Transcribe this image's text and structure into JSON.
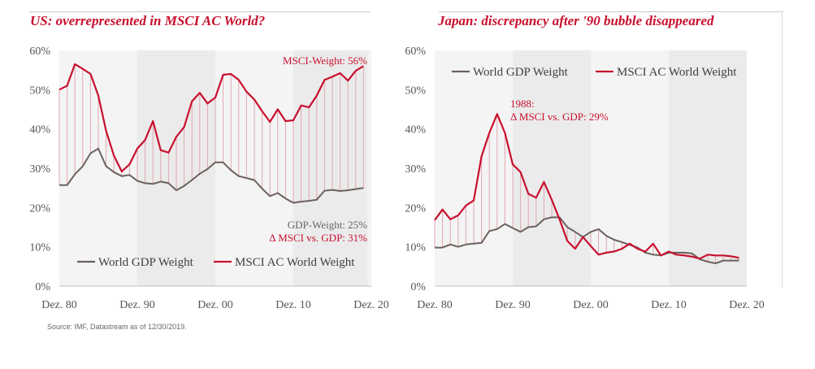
{
  "colors": {
    "msci": "#c8102e",
    "gdp": "#6b625d",
    "band": "#ebebeb",
    "plot_bg": "#f4f4f4",
    "annotation_text": "#c8102e",
    "annotation_grey": "#666666"
  },
  "source": "Source: IMF, Datastream as of 12/30/2019.",
  "chart_data": [
    {
      "type": "line",
      "title": "US: overrepresented in MSCI AC World?",
      "xlabel": "",
      "ylabel": "",
      "xlim": [
        1980,
        2020
      ],
      "ylim": [
        0,
        60
      ],
      "y_ticks": [
        "0%",
        "10%",
        "20%",
        "30%",
        "40%",
        "50%",
        "60%"
      ],
      "x_ticks": [
        {
          "x": 1980,
          "label": "Dez. 80"
        },
        {
          "x": 1990,
          "label": "Dez. 90"
        },
        {
          "x": 2000,
          "label": "Dez. 00"
        },
        {
          "x": 2010,
          "label": "Dez. 10"
        },
        {
          "x": 2020,
          "label": "Dez. 20"
        }
      ],
      "shaded_bands": [
        [
          1990,
          2000
        ],
        [
          2010,
          2019.5
        ]
      ],
      "legend": {
        "placement": "bottom-left",
        "items": [
          "World GDP Weight",
          "MSCI AC World Weight"
        ]
      },
      "annotations": [
        {
          "text": "MSCI-Weight: 56%",
          "color": "msci"
        },
        {
          "text": "GDP-Weight: 25%",
          "color": "gdp"
        },
        {
          "text": "Δ MSCI vs. GDP: 31%",
          "color": "msci"
        }
      ],
      "x": [
        1980,
        1981,
        1982,
        1983,
        1984,
        1985,
        1986,
        1987,
        1988,
        1989,
        1990,
        1991,
        1992,
        1993,
        1994,
        1995,
        1996,
        1997,
        1998,
        1999,
        2000,
        2001,
        2002,
        2003,
        2004,
        2005,
        2006,
        2007,
        2008,
        2009,
        2010,
        2011,
        2012,
        2013,
        2014,
        2015,
        2016,
        2017,
        2018,
        2019
      ],
      "series": [
        {
          "name": "World GDP Weight",
          "color": "gdp",
          "values": [
            25.7,
            25.7,
            28.5,
            30.5,
            33.8,
            35.0,
            30.5,
            29.0,
            28.0,
            28.3,
            26.8,
            26.2,
            26.0,
            26.6,
            26.2,
            24.4,
            25.5,
            27.0,
            28.6,
            29.8,
            31.5,
            31.5,
            29.5,
            28.0,
            27.5,
            27.0,
            24.8,
            22.9,
            23.7,
            22.3,
            21.2,
            21.5,
            21.7,
            22.0,
            24.3,
            24.5,
            24.2,
            24.4,
            24.7,
            25.0
          ]
        },
        {
          "name": "MSCI AC World Weight",
          "color": "msci",
          "values": [
            50.0,
            51.0,
            56.5,
            55.3,
            54.0,
            48.5,
            39.5,
            33.2,
            29.2,
            31.0,
            35.0,
            37.2,
            42.0,
            34.6,
            34.0,
            38.0,
            40.5,
            47.0,
            49.2,
            46.5,
            48.0,
            53.8,
            54.0,
            52.5,
            49.5,
            47.5,
            44.5,
            41.8,
            45.0,
            42.0,
            42.2,
            46.0,
            45.5,
            48.5,
            52.5,
            53.3,
            54.2,
            52.3,
            54.8,
            56.0
          ]
        }
      ]
    },
    {
      "type": "line",
      "title": "Japan: discrepancy after '90 bubble disappeared",
      "xlabel": "",
      "ylabel": "",
      "xlim": [
        1980,
        2020
      ],
      "ylim": [
        0,
        60
      ],
      "y_ticks": [
        "0%",
        "10%",
        "20%",
        "30%",
        "40%",
        "50%",
        "60%"
      ],
      "x_ticks": [
        {
          "x": 1980,
          "label": "Dez. 80"
        },
        {
          "x": 1990,
          "label": "Dez. 90"
        },
        {
          "x": 2000,
          "label": "Dez. 00"
        },
        {
          "x": 2010,
          "label": "Dez. 10"
        },
        {
          "x": 2020,
          "label": "Dez. 20"
        }
      ],
      "shaded_bands": [
        [
          1990,
          2000
        ],
        [
          2010,
          2020
        ]
      ],
      "legend": {
        "placement": "top-left",
        "items": [
          "World GDP Weight",
          "MSCI AC World Weight"
        ]
      },
      "annotations": [
        {
          "text": "1988:",
          "color": "msci"
        },
        {
          "text": "Δ MSCI vs. GDP: 29%",
          "color": "msci"
        }
      ],
      "x": [
        1980,
        1981,
        1982,
        1983,
        1984,
        1985,
        1986,
        1987,
        1988,
        1989,
        1990,
        1991,
        1992,
        1993,
        1994,
        1995,
        1996,
        1997,
        1998,
        1999,
        2000,
        2001,
        2002,
        2003,
        2004,
        2005,
        2006,
        2007,
        2008,
        2009,
        2010,
        2011,
        2012,
        2013,
        2014,
        2015,
        2016,
        2017,
        2018,
        2019
      ],
      "series": [
        {
          "name": "World GDP Weight",
          "color": "gdp",
          "values": [
            9.8,
            9.8,
            10.6,
            10.0,
            10.6,
            10.8,
            11.0,
            14.0,
            14.5,
            15.8,
            14.8,
            13.8,
            15.0,
            15.2,
            17.0,
            17.5,
            17.5,
            15.0,
            13.8,
            12.5,
            13.8,
            14.5,
            12.8,
            11.8,
            11.2,
            10.5,
            9.8,
            8.5,
            8.0,
            7.8,
            8.5,
            8.5,
            8.5,
            8.3,
            6.8,
            6.2,
            5.8,
            6.5,
            6.5,
            6.5
          ]
        },
        {
          "name": "MSCI AC World Weight",
          "color": "msci",
          "values": [
            16.8,
            19.5,
            17.0,
            18.0,
            20.5,
            21.8,
            33.0,
            39.0,
            43.8,
            39.0,
            31.0,
            29.0,
            23.5,
            22.5,
            26.5,
            22.0,
            17.0,
            11.5,
            9.5,
            12.5,
            10.2,
            8.0,
            8.5,
            8.8,
            9.5,
            10.8,
            9.5,
            8.8,
            10.8,
            7.8,
            8.8,
            8.0,
            7.8,
            7.5,
            7.0,
            8.0,
            7.8,
            7.8,
            7.6,
            7.2
          ]
        }
      ]
    }
  ]
}
